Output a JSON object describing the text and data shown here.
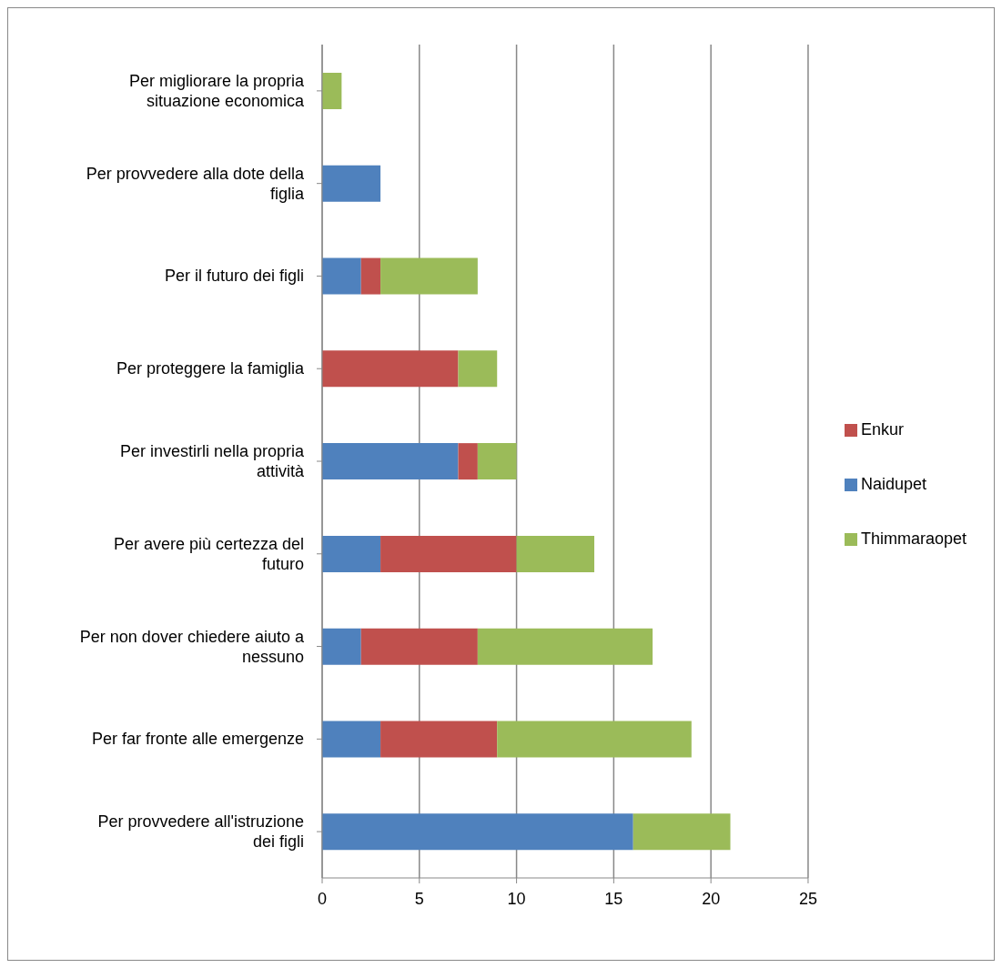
{
  "chart_data": {
    "type": "bar",
    "orientation": "horizontal",
    "stacked": true,
    "categories": [
      "Per migliorare la propria situazione economica",
      "Per provvedere alla dote della figlia",
      "Per il futuro dei figli",
      "Per proteggere la famiglia",
      "Per investirli nella propria attività",
      "Per avere più certezza del futuro",
      "Per non dover chiedere aiuto a nessuno",
      "Per far fronte alle emergenze",
      "Per provvedere all'istruzione dei figli"
    ],
    "series": [
      {
        "name": "Naidupet",
        "color": "#4f81bd",
        "values": [
          0,
          3,
          2,
          0,
          7,
          3,
          2,
          3,
          16
        ]
      },
      {
        "name": "Enkur",
        "color": "#c0504d",
        "values": [
          0,
          0,
          1,
          7,
          1,
          7,
          6,
          6,
          0
        ]
      },
      {
        "name": "Thimmaraopet",
        "color": "#9bbb59",
        "values": [
          1,
          0,
          5,
          2,
          2,
          4,
          9,
          10,
          5
        ]
      }
    ],
    "xlim": [
      0,
      25
    ],
    "xticks": [
      0,
      5,
      10,
      15,
      20,
      25
    ],
    "grid": "x",
    "legend": "right"
  }
}
